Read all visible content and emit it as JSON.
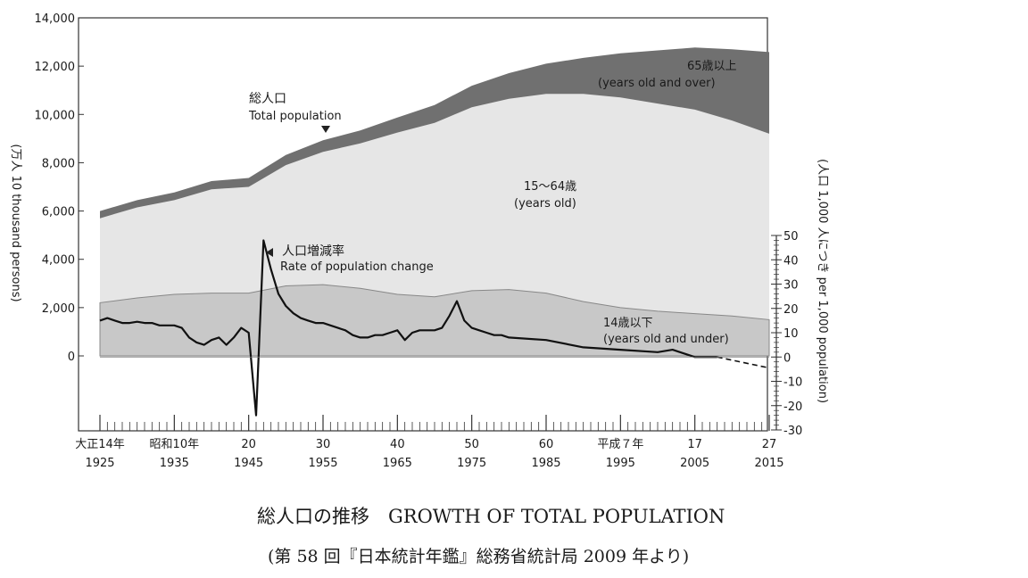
{
  "chart_data": {
    "type": "area",
    "title": "総人口の推移　GROWTH OF TOTAL POPULATION",
    "subtitle": "(第 58 回『日本統計年鑑』総務省統計局 2009 年より)",
    "left_axis": {
      "label": "(万人 10 thousand persons)",
      "range": [
        0,
        14000
      ],
      "ticks": [
        "0",
        "2,000",
        "4,000",
        "6,000",
        "8,000",
        "10,000",
        "12,000",
        "14,000"
      ]
    },
    "right_axis": {
      "label": "(人口 1,000 人につき per 1,000 population)",
      "range": [
        -30,
        50
      ],
      "ticks": [
        "-30",
        "-20",
        "-10",
        "0",
        "10",
        "20",
        "30",
        "40",
        "50"
      ]
    },
    "x_axis": {
      "range": [
        1925,
        2015
      ],
      "ticks": [
        {
          "jp": "大正14年",
          "year": "1925"
        },
        {
          "jp": "昭和10年",
          "year": "1935"
        },
        {
          "jp": "20",
          "year": "1945"
        },
        {
          "jp": "30",
          "year": "1955"
        },
        {
          "jp": "40",
          "year": "1965"
        },
        {
          "jp": "50",
          "year": "1975"
        },
        {
          "jp": "60",
          "year": "1985"
        },
        {
          "jp": "平成７年",
          "year": "1995"
        },
        {
          "jp": "17",
          "year": "2005"
        },
        {
          "jp": "27",
          "year": "2015"
        }
      ]
    },
    "colors": {
      "age65": "#707070",
      "age15_64": "#e6e6e6",
      "age0_14": "#c8c8c8",
      "rate": "#111111"
    },
    "annotations": {
      "total_jp": "総人口",
      "total_en": "Total population",
      "age65_jp": "65歳以上",
      "age65_en": "(years old and over)",
      "age15_64_jp": "15～64歳",
      "age15_64_en": "(years old)",
      "age0_14_jp": "14歳以下",
      "age0_14_en": "(years old and under)",
      "rate_jp": "人口増減率",
      "rate_en": "Rate of population change"
    },
    "series": [
      {
        "name": "14歳以下",
        "x": [
          1925,
          1930,
          1935,
          1940,
          1945,
          1950,
          1955,
          1960,
          1965,
          1970,
          1975,
          1980,
          1985,
          1990,
          1995,
          2000,
          2005,
          2010,
          2015
        ],
        "values": [
          2200,
          2400,
          2550,
          2600,
          2600,
          2900,
          2950,
          2800,
          2550,
          2450,
          2700,
          2750,
          2600,
          2250,
          2000,
          1850,
          1750,
          1650,
          1500
        ]
      },
      {
        "name": "15～64歳",
        "x": [
          1925,
          1930,
          1935,
          1940,
          1945,
          1950,
          1955,
          1960,
          1965,
          1970,
          1975,
          1980,
          1985,
          1990,
          1995,
          2000,
          2005,
          2010,
          2015
        ],
        "values": [
          3500,
          3750,
          3900,
          4300,
          4400,
          5000,
          5500,
          6000,
          6700,
          7200,
          7600,
          7900,
          8250,
          8600,
          8700,
          8600,
          8450,
          8100,
          7700
        ]
      },
      {
        "name": "65歳以上",
        "x": [
          1925,
          1930,
          1935,
          1940,
          1945,
          1950,
          1955,
          1960,
          1965,
          1970,
          1975,
          1980,
          1985,
          1990,
          1995,
          2000,
          2005,
          2010,
          2015
        ],
        "values": [
          300,
          300,
          320,
          340,
          370,
          420,
          480,
          540,
          620,
          740,
          890,
          1060,
          1250,
          1490,
          1830,
          2200,
          2570,
          2950,
          3380
        ]
      }
    ],
    "rate_series": {
      "name": "人口増減率",
      "x": [
        1925,
        1926,
        1927,
        1928,
        1929,
        1930,
        1931,
        1932,
        1933,
        1934,
        1935,
        1936,
        1937,
        1938,
        1939,
        1940,
        1941,
        1942,
        1943,
        1944,
        1945,
        1946,
        1947,
        1948,
        1949,
        1950,
        1951,
        1952,
        1953,
        1954,
        1955,
        1956,
        1957,
        1958,
        1959,
        1960,
        1961,
        1962,
        1963,
        1964,
        1965,
        1966,
        1967,
        1968,
        1969,
        1970,
        1971,
        1972,
        1973,
        1974,
        1975,
        1976,
        1977,
        1978,
        1979,
        1980,
        1985,
        1990,
        1995,
        2000,
        2002,
        2003,
        2005,
        2008
      ],
      "values": [
        15,
        16,
        15,
        14,
        14,
        14.5,
        14,
        14,
        13,
        13,
        13,
        12,
        8,
        6,
        5,
        7,
        8,
        5,
        8,
        12,
        10,
        -24,
        48,
        36,
        26,
        21,
        18,
        16,
        15,
        14,
        14,
        13,
        12,
        11,
        9,
        8,
        8,
        9,
        9,
        10,
        11,
        7,
        10,
        11,
        11,
        11,
        12,
        17,
        23,
        15,
        12,
        11,
        10,
        9,
        9,
        8,
        7,
        4,
        3,
        2,
        3,
        2,
        0,
        0
      ],
      "projection": {
        "x": [
          2008,
          2015
        ],
        "values": [
          0,
          -4.5
        ]
      }
    }
  }
}
